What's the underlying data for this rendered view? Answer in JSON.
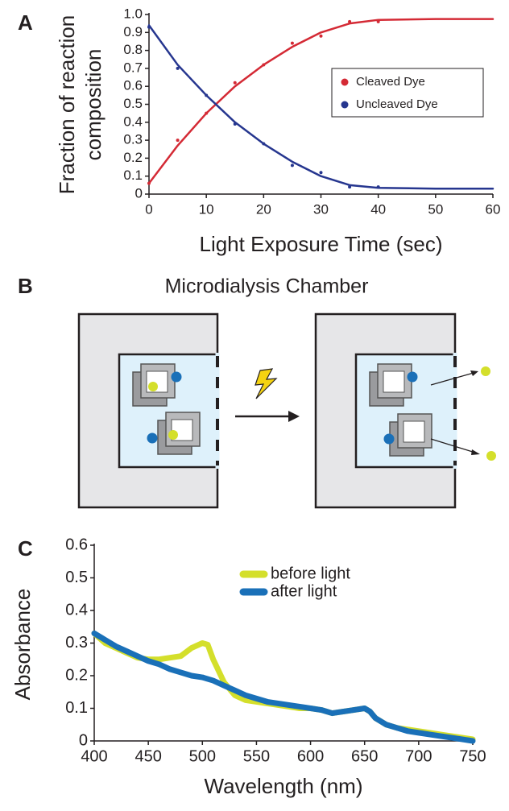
{
  "panel_labels": [
    "A",
    "B",
    "C"
  ],
  "diagram": {
    "title": "Microdialysis Chamber"
  },
  "chart_data": [
    {
      "type": "line",
      "xlabel": "Light Exposure Time (sec)",
      "ylabel": [
        "Fraction of reaction",
        "composition"
      ],
      "xlim": [
        0,
        60
      ],
      "ylim": [
        0,
        1
      ],
      "xticks": [
        0,
        10,
        20,
        30,
        40,
        50,
        60
      ],
      "yticks": [
        0,
        0.1,
        0.2,
        0.3,
        0.4,
        0.5,
        0.6,
        0.7,
        0.8,
        0.9,
        {
          "value": 1,
          "label": "1.0"
        }
      ],
      "legend": "upper right",
      "line_width": 2.5,
      "markers": true,
      "series": [
        {
          "name": "Cleaved Dye",
          "color": "#d42a35",
          "x": [
            0,
            5,
            10,
            15,
            20,
            25,
            30,
            35,
            40
          ],
          "values": [
            0.06,
            0.3,
            0.45,
            0.62,
            0.72,
            0.84,
            0.88,
            0.96,
            0.96
          ],
          "fit_x": [
            0,
            5,
            10,
            15,
            20,
            25,
            30,
            35,
            40,
            50,
            60
          ],
          "fit_values": [
            0.06,
            0.27,
            0.45,
            0.6,
            0.72,
            0.82,
            0.9,
            0.95,
            0.97,
            0.975,
            0.975
          ]
        },
        {
          "name": "Uncleaved Dye",
          "color": "#26368f",
          "x": [
            0,
            5,
            10,
            15,
            20,
            25,
            30,
            35,
            40
          ],
          "values": [
            0.93,
            0.7,
            0.55,
            0.39,
            0.28,
            0.16,
            0.12,
            0.04,
            0.04
          ],
          "fit_x": [
            0,
            5,
            10,
            15,
            20,
            25,
            30,
            35,
            40,
            50,
            60
          ],
          "fit_values": [
            0.94,
            0.72,
            0.55,
            0.4,
            0.28,
            0.18,
            0.1,
            0.05,
            0.035,
            0.03,
            0.03
          ]
        }
      ]
    },
    {
      "type": "line",
      "xlabel": "Wavelength (nm)",
      "ylabel": [
        "Absorbance"
      ],
      "xlim": [
        400,
        750
      ],
      "ylim": [
        0,
        0.6
      ],
      "xticks": [
        400,
        450,
        500,
        550,
        600,
        650,
        700,
        750
      ],
      "yticks": [
        0,
        0.1,
        0.2,
        0.3,
        0.4,
        0.5,
        0.6
      ],
      "legend": "upper center",
      "line_width": 7,
      "markers": false,
      "series": [
        {
          "name": "before light",
          "color": "#d4df2b",
          "x": [
            400,
            410,
            420,
            430,
            440,
            450,
            460,
            470,
            480,
            490,
            500,
            505,
            510,
            520,
            530,
            540,
            550,
            560,
            570,
            580,
            590,
            600,
            610,
            620,
            630,
            640,
            650,
            655,
            660,
            670,
            680,
            690,
            700,
            710,
            720,
            730,
            740,
            750
          ],
          "values": [
            0.33,
            0.3,
            0.285,
            0.27,
            0.255,
            0.25,
            0.25,
            0.255,
            0.26,
            0.285,
            0.3,
            0.295,
            0.25,
            0.18,
            0.14,
            0.125,
            0.12,
            0.115,
            0.11,
            0.105,
            0.1,
            0.1,
            0.095,
            0.085,
            0.09,
            0.095,
            0.1,
            0.09,
            0.07,
            0.05,
            0.04,
            0.035,
            0.03,
            0.025,
            0.02,
            0.015,
            0.01,
            0.005
          ]
        },
        {
          "name": "after light",
          "color": "#1a70b8",
          "x": [
            400,
            410,
            420,
            430,
            440,
            450,
            460,
            470,
            480,
            490,
            500,
            505,
            510,
            520,
            530,
            540,
            550,
            560,
            570,
            580,
            590,
            600,
            610,
            620,
            630,
            640,
            650,
            655,
            660,
            670,
            680,
            690,
            700,
            710,
            720,
            730,
            740,
            750
          ],
          "values": [
            0.33,
            0.31,
            0.29,
            0.275,
            0.26,
            0.245,
            0.235,
            0.22,
            0.21,
            0.2,
            0.195,
            0.19,
            0.185,
            0.17,
            0.155,
            0.14,
            0.13,
            0.12,
            0.115,
            0.11,
            0.105,
            0.1,
            0.095,
            0.085,
            0.09,
            0.095,
            0.1,
            0.09,
            0.07,
            0.05,
            0.04,
            0.03,
            0.025,
            0.02,
            0.015,
            0.01,
            0.005,
            0
          ]
        }
      ]
    }
  ]
}
